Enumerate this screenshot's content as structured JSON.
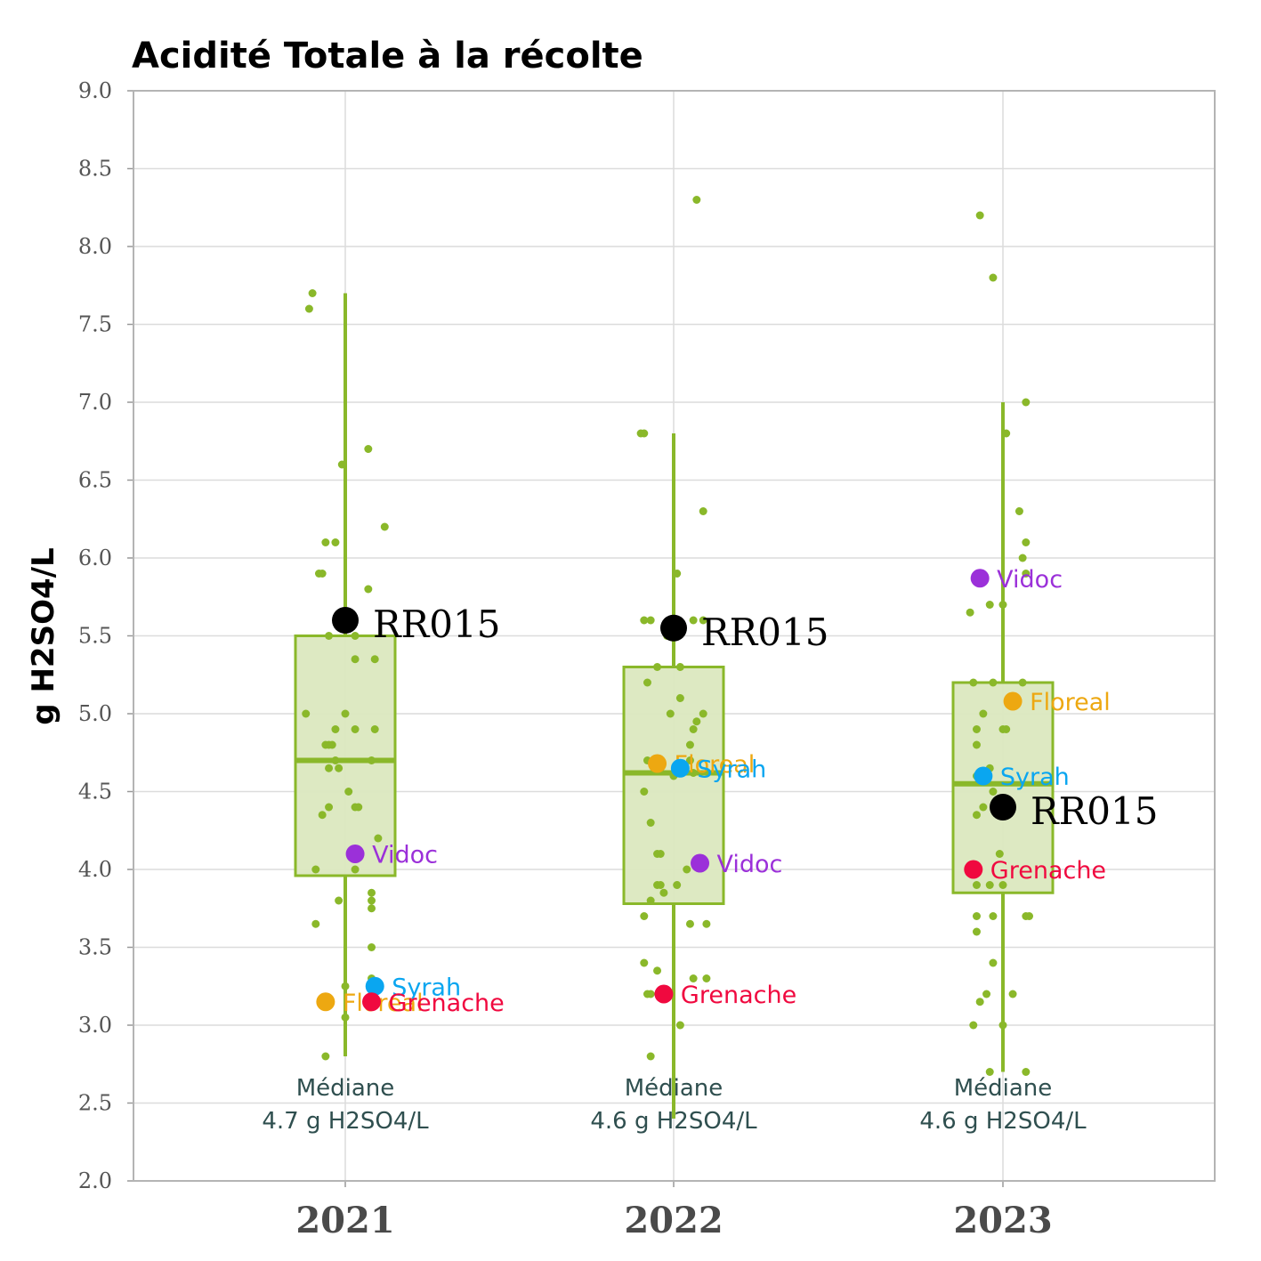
{
  "chart_data": {
    "type": "box",
    "title": "Acidité Totale à la récolte",
    "ylabel": "g H2SO4/L",
    "xlabel": "",
    "ylim": [
      2.0,
      9.0
    ],
    "yticks": [
      "2.0",
      "2.5",
      "3.0",
      "3.5",
      "4.0",
      "4.5",
      "5.0",
      "5.5",
      "6.0",
      "6.5",
      "7.0",
      "7.5",
      "8.0",
      "8.5",
      "9.0"
    ],
    "grid": true,
    "colors": {
      "box_stroke": "#8ab82a",
      "box_fill": "#dbe8bf",
      "jitter": "#8ab82a",
      "RR015": "#000000",
      "Vidoc": "#9b30d9",
      "Syrah": "#0aa6f0",
      "Floreal": "#eda811",
      "Grenache": "#f0093f"
    },
    "categories": [
      "2021",
      "2022",
      "2023"
    ],
    "boxes": [
      {
        "year": "2021",
        "whisker_low": 2.8,
        "q1": 3.96,
        "median": 4.7,
        "q3": 5.5,
        "whisker_high": 7.7,
        "median_line1": "Médiane",
        "median_line2": "4.7 g H2SO4/L"
      },
      {
        "year": "2022",
        "whisker_low": 2.4,
        "q1": 3.78,
        "median": 4.62,
        "q3": 5.3,
        "whisker_high": 6.8,
        "median_line1": "Médiane",
        "median_line2": "4.6 g H2SO4/L"
      },
      {
        "year": "2023",
        "whisker_low": 2.7,
        "q1": 3.85,
        "median": 4.55,
        "q3": 5.2,
        "whisker_high": 7.0,
        "median_line1": "Médiane",
        "median_line2": "4.6 g H2SO4/L"
      }
    ],
    "jitter_points": [
      {
        "year": "2021",
        "dx": -0.1,
        "y": 7.7
      },
      {
        "year": "2021",
        "dx": -0.11,
        "y": 7.6
      },
      {
        "year": "2021",
        "dx": 0.07,
        "y": 6.7
      },
      {
        "year": "2021",
        "dx": -0.01,
        "y": 6.6
      },
      {
        "year": "2021",
        "dx": 0.12,
        "y": 6.2
      },
      {
        "year": "2021",
        "dx": -0.06,
        "y": 6.1
      },
      {
        "year": "2021",
        "dx": -0.03,
        "y": 6.1
      },
      {
        "year": "2021",
        "dx": -0.08,
        "y": 5.9
      },
      {
        "year": "2021",
        "dx": -0.07,
        "y": 5.9
      },
      {
        "year": "2021",
        "dx": 0.07,
        "y": 5.8
      },
      {
        "year": "2021",
        "dx": -0.02,
        "y": 5.6
      },
      {
        "year": "2021",
        "dx": -0.05,
        "y": 5.5
      },
      {
        "year": "2021",
        "dx": 0.03,
        "y": 5.5
      },
      {
        "year": "2021",
        "dx": 0.09,
        "y": 5.35
      },
      {
        "year": "2021",
        "dx": 0.03,
        "y": 5.35
      },
      {
        "year": "2021",
        "dx": -0.12,
        "y": 5.0
      },
      {
        "year": "2021",
        "dx": 0.0,
        "y": 5.0
      },
      {
        "year": "2021",
        "dx": -0.03,
        "y": 4.9
      },
      {
        "year": "2021",
        "dx": 0.03,
        "y": 4.9
      },
      {
        "year": "2021",
        "dx": 0.09,
        "y": 4.9
      },
      {
        "year": "2021",
        "dx": -0.06,
        "y": 4.8
      },
      {
        "year": "2021",
        "dx": -0.05,
        "y": 4.8
      },
      {
        "year": "2021",
        "dx": -0.04,
        "y": 4.8
      },
      {
        "year": "2021",
        "dx": -0.03,
        "y": 4.7
      },
      {
        "year": "2021",
        "dx": 0.08,
        "y": 4.7
      },
      {
        "year": "2021",
        "dx": -0.05,
        "y": 4.65
      },
      {
        "year": "2021",
        "dx": -0.02,
        "y": 4.65
      },
      {
        "year": "2021",
        "dx": 0.01,
        "y": 4.5
      },
      {
        "year": "2021",
        "dx": -0.05,
        "y": 4.4
      },
      {
        "year": "2021",
        "dx": 0.04,
        "y": 4.4
      },
      {
        "year": "2021",
        "dx": 0.03,
        "y": 4.4
      },
      {
        "year": "2021",
        "dx": -0.07,
        "y": 4.35
      },
      {
        "year": "2021",
        "dx": 0.1,
        "y": 4.2
      },
      {
        "year": "2021",
        "dx": 0.03,
        "y": 4.0
      },
      {
        "year": "2021",
        "dx": -0.09,
        "y": 4.0
      },
      {
        "year": "2021",
        "dx": 0.08,
        "y": 3.85
      },
      {
        "year": "2021",
        "dx": 0.08,
        "y": 3.8
      },
      {
        "year": "2021",
        "dx": 0.08,
        "y": 3.75
      },
      {
        "year": "2021",
        "dx": -0.02,
        "y": 3.8
      },
      {
        "year": "2021",
        "dx": -0.09,
        "y": 3.65
      },
      {
        "year": "2021",
        "dx": 0.08,
        "y": 3.5
      },
      {
        "year": "2021",
        "dx": 0.0,
        "y": 3.25
      },
      {
        "year": "2021",
        "dx": 0.08,
        "y": 3.3
      },
      {
        "year": "2021",
        "dx": 0.0,
        "y": 3.05
      },
      {
        "year": "2021",
        "dx": -0.06,
        "y": 2.8
      },
      {
        "year": "2022",
        "dx": 0.07,
        "y": 8.3
      },
      {
        "year": "2022",
        "dx": -0.1,
        "y": 6.8
      },
      {
        "year": "2022",
        "dx": -0.09,
        "y": 6.8
      },
      {
        "year": "2022",
        "dx": 0.09,
        "y": 6.3
      },
      {
        "year": "2022",
        "dx": 0.01,
        "y": 5.9
      },
      {
        "year": "2022",
        "dx": -0.09,
        "y": 5.6
      },
      {
        "year": "2022",
        "dx": -0.07,
        "y": 5.6
      },
      {
        "year": "2022",
        "dx": 0.06,
        "y": 5.6
      },
      {
        "year": "2022",
        "dx": 0.09,
        "y": 5.6
      },
      {
        "year": "2022",
        "dx": -0.02,
        "y": 5.5
      },
      {
        "year": "2022",
        "dx": -0.05,
        "y": 5.3
      },
      {
        "year": "2022",
        "dx": 0.02,
        "y": 5.3
      },
      {
        "year": "2022",
        "dx": -0.08,
        "y": 5.2
      },
      {
        "year": "2022",
        "dx": 0.02,
        "y": 5.1
      },
      {
        "year": "2022",
        "dx": 0.09,
        "y": 5.0
      },
      {
        "year": "2022",
        "dx": -0.01,
        "y": 5.0
      },
      {
        "year": "2022",
        "dx": 0.07,
        "y": 4.95
      },
      {
        "year": "2022",
        "dx": 0.06,
        "y": 4.9
      },
      {
        "year": "2022",
        "dx": 0.05,
        "y": 4.8
      },
      {
        "year": "2022",
        "dx": 0.05,
        "y": 4.7
      },
      {
        "year": "2022",
        "dx": -0.08,
        "y": 4.7
      },
      {
        "year": "2022",
        "dx": -0.05,
        "y": 4.65
      },
      {
        "year": "2022",
        "dx": 0.06,
        "y": 4.62
      },
      {
        "year": "2022",
        "dx": 0.0,
        "y": 4.6
      },
      {
        "year": "2022",
        "dx": -0.09,
        "y": 4.5
      },
      {
        "year": "2022",
        "dx": -0.07,
        "y": 4.3
      },
      {
        "year": "2022",
        "dx": -0.05,
        "y": 4.1
      },
      {
        "year": "2022",
        "dx": -0.04,
        "y": 4.1
      },
      {
        "year": "2022",
        "dx": 0.04,
        "y": 4.0
      },
      {
        "year": "2022",
        "dx": -0.05,
        "y": 3.9
      },
      {
        "year": "2022",
        "dx": -0.04,
        "y": 3.9
      },
      {
        "year": "2022",
        "dx": 0.01,
        "y": 3.9
      },
      {
        "year": "2022",
        "dx": -0.03,
        "y": 3.85
      },
      {
        "year": "2022",
        "dx": -0.07,
        "y": 3.8
      },
      {
        "year": "2022",
        "dx": -0.09,
        "y": 3.7
      },
      {
        "year": "2022",
        "dx": 0.05,
        "y": 3.65
      },
      {
        "year": "2022",
        "dx": 0.1,
        "y": 3.65
      },
      {
        "year": "2022",
        "dx": -0.09,
        "y": 3.4
      },
      {
        "year": "2022",
        "dx": -0.05,
        "y": 3.35
      },
      {
        "year": "2022",
        "dx": 0.06,
        "y": 3.3
      },
      {
        "year": "2022",
        "dx": 0.1,
        "y": 3.3
      },
      {
        "year": "2022",
        "dx": -0.07,
        "y": 3.2
      },
      {
        "year": "2022",
        "dx": -0.08,
        "y": 3.2
      },
      {
        "year": "2022",
        "dx": 0.02,
        "y": 3.0
      },
      {
        "year": "2022",
        "dx": -0.07,
        "y": 2.8
      },
      {
        "year": "2023",
        "dx": -0.07,
        "y": 8.2
      },
      {
        "year": "2023",
        "dx": -0.03,
        "y": 7.8
      },
      {
        "year": "2023",
        "dx": 0.07,
        "y": 7.0
      },
      {
        "year": "2023",
        "dx": 0.01,
        "y": 6.8
      },
      {
        "year": "2023",
        "dx": 0.05,
        "y": 6.3
      },
      {
        "year": "2023",
        "dx": 0.07,
        "y": 6.1
      },
      {
        "year": "2023",
        "dx": 0.06,
        "y": 6.0
      },
      {
        "year": "2023",
        "dx": 0.07,
        "y": 5.9
      },
      {
        "year": "2023",
        "dx": 0.0,
        "y": 5.7
      },
      {
        "year": "2023",
        "dx": -0.04,
        "y": 5.7
      },
      {
        "year": "2023",
        "dx": -0.1,
        "y": 5.65
      },
      {
        "year": "2023",
        "dx": -0.09,
        "y": 5.2
      },
      {
        "year": "2023",
        "dx": -0.03,
        "y": 5.2
      },
      {
        "year": "2023",
        "dx": 0.06,
        "y": 5.2
      },
      {
        "year": "2023",
        "dx": 0.02,
        "y": 5.1
      },
      {
        "year": "2023",
        "dx": -0.06,
        "y": 5.0
      },
      {
        "year": "2023",
        "dx": -0.08,
        "y": 4.9
      },
      {
        "year": "2023",
        "dx": 0.0,
        "y": 4.9
      },
      {
        "year": "2023",
        "dx": 0.01,
        "y": 4.9
      },
      {
        "year": "2023",
        "dx": -0.08,
        "y": 4.8
      },
      {
        "year": "2023",
        "dx": -0.04,
        "y": 4.65
      },
      {
        "year": "2023",
        "dx": -0.08,
        "y": 4.6
      },
      {
        "year": "2023",
        "dx": -0.03,
        "y": 4.5
      },
      {
        "year": "2023",
        "dx": -0.01,
        "y": 4.45
      },
      {
        "year": "2023",
        "dx": -0.06,
        "y": 4.4
      },
      {
        "year": "2023",
        "dx": -0.01,
        "y": 4.4
      },
      {
        "year": "2023",
        "dx": -0.08,
        "y": 4.35
      },
      {
        "year": "2023",
        "dx": -0.01,
        "y": 4.1
      },
      {
        "year": "2023",
        "dx": -0.04,
        "y": 3.9
      },
      {
        "year": "2023",
        "dx": 0.0,
        "y": 3.9
      },
      {
        "year": "2023",
        "dx": -0.08,
        "y": 3.9
      },
      {
        "year": "2023",
        "dx": -0.08,
        "y": 3.7
      },
      {
        "year": "2023",
        "dx": -0.03,
        "y": 3.7
      },
      {
        "year": "2023",
        "dx": 0.07,
        "y": 3.7
      },
      {
        "year": "2023",
        "dx": 0.08,
        "y": 3.7
      },
      {
        "year": "2023",
        "dx": -0.08,
        "y": 3.6
      },
      {
        "year": "2023",
        "dx": -0.03,
        "y": 3.4
      },
      {
        "year": "2023",
        "dx": -0.05,
        "y": 3.2
      },
      {
        "year": "2023",
        "dx": 0.03,
        "y": 3.2
      },
      {
        "year": "2023",
        "dx": -0.07,
        "y": 3.15
      },
      {
        "year": "2023",
        "dx": -0.09,
        "y": 3.0
      },
      {
        "year": "2023",
        "dx": 0.0,
        "y": 3.0
      },
      {
        "year": "2023",
        "dx": -0.04,
        "y": 2.7
      },
      {
        "year": "2023",
        "dx": 0.07,
        "y": 2.7
      }
    ],
    "highlights": [
      {
        "year": "2021",
        "label": "RR015",
        "y": 5.6,
        "dx": 0.0,
        "size": "big"
      },
      {
        "year": "2021",
        "label": "Vidoc",
        "y": 4.1,
        "dx": 0.03,
        "size": "small"
      },
      {
        "year": "2021",
        "label": "Syrah",
        "y": 3.25,
        "dx": 0.09,
        "size": "small"
      },
      {
        "year": "2021",
        "label": "Floreal",
        "y": 3.15,
        "dx": -0.06,
        "size": "small"
      },
      {
        "year": "2021",
        "label": "Grenache",
        "y": 3.15,
        "dx": 0.08,
        "size": "small"
      },
      {
        "year": "2022",
        "label": "RR015",
        "y": 5.55,
        "dx": 0.0,
        "size": "big"
      },
      {
        "year": "2022",
        "label": "Floreal",
        "y": 4.68,
        "dx": -0.05,
        "size": "small"
      },
      {
        "year": "2022",
        "label": "Syrah",
        "y": 4.65,
        "dx": 0.02,
        "size": "small"
      },
      {
        "year": "2022",
        "label": "Vidoc",
        "y": 4.04,
        "dx": 0.08,
        "size": "small"
      },
      {
        "year": "2022",
        "label": "Grenache",
        "y": 3.2,
        "dx": -0.03,
        "size": "small"
      },
      {
        "year": "2023",
        "label": "Vidoc",
        "y": 5.87,
        "dx": -0.07,
        "size": "small"
      },
      {
        "year": "2023",
        "label": "Floreal",
        "y": 5.08,
        "dx": 0.03,
        "size": "small"
      },
      {
        "year": "2023",
        "label": "Syrah",
        "y": 4.6,
        "dx": -0.06,
        "size": "small"
      },
      {
        "year": "2023",
        "label": "RR015",
        "y": 4.4,
        "dx": 0.0,
        "size": "big"
      },
      {
        "year": "2023",
        "label": "Grenache",
        "y": 4.0,
        "dx": -0.09,
        "size": "small"
      }
    ]
  }
}
